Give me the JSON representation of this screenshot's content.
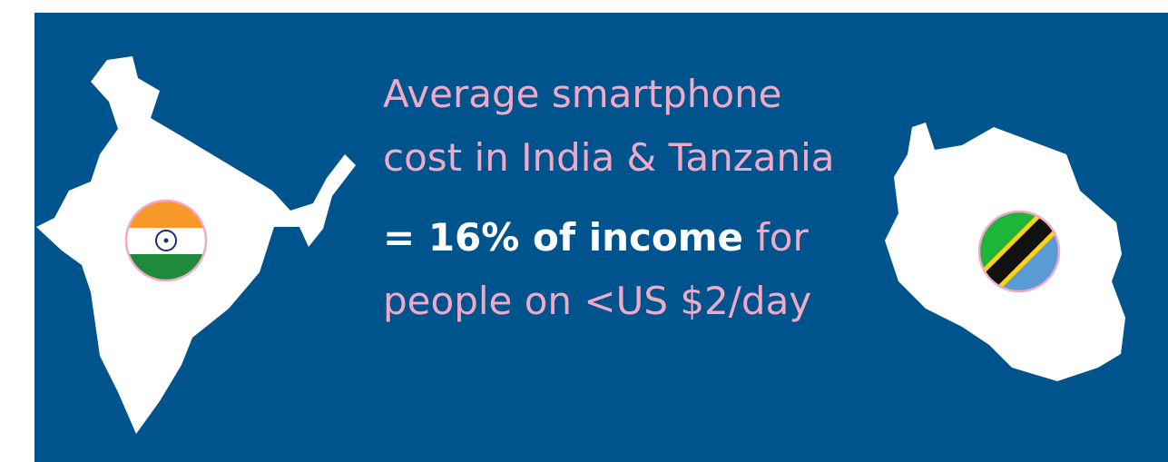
{
  "headline": {
    "lines": [
      "Average smartphone",
      "cost in India & Tanzania"
    ]
  },
  "statement": {
    "highlight": "= 16% of income",
    "rest": "for",
    "line2": "people on <US $2/day"
  }
}
